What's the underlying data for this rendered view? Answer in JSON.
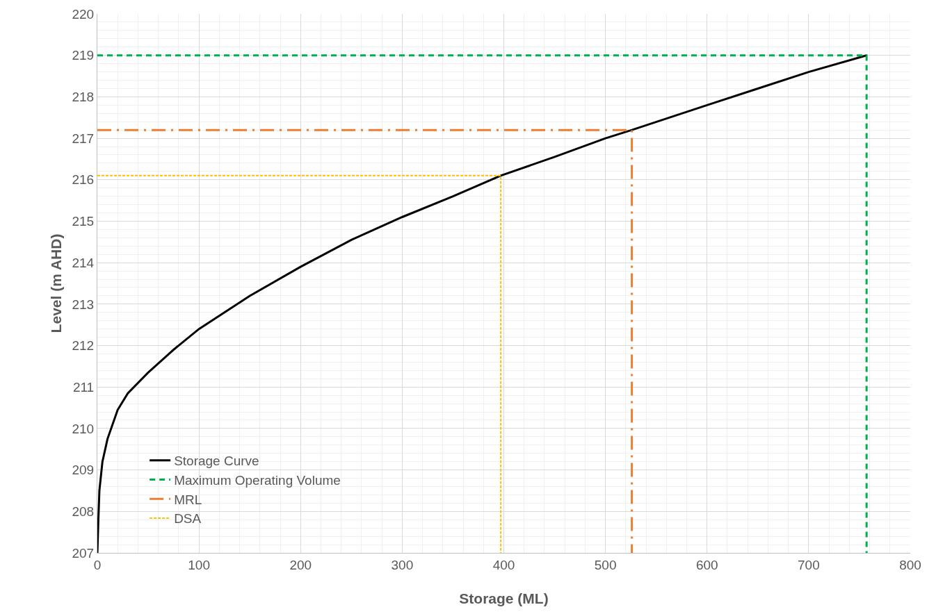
{
  "chart_data": {
    "type": "line",
    "xlabel": "Storage (ML)",
    "ylabel": "Level (m AHD)",
    "xlim": [
      0,
      800
    ],
    "xticks": [
      0,
      100,
      200,
      300,
      400,
      500,
      600,
      700,
      800
    ],
    "ylim": [
      207,
      220
    ],
    "yticks": [
      207,
      208,
      209,
      210,
      211,
      212,
      213,
      214,
      215,
      216,
      217,
      218,
      219,
      220
    ],
    "grid": true,
    "legend": "bottom left",
    "marker": "none",
    "series": [
      {
        "name": "Storage Curve",
        "color": "#000000",
        "line_style": "solid",
        "x": [
          0,
          1,
          2,
          5,
          10,
          20,
          30,
          50,
          75,
          100,
          150,
          200,
          250,
          300,
          350,
          397,
          450,
          500,
          526,
          600,
          650,
          700,
          757
        ],
        "values": [
          207,
          207.8,
          208.5,
          209.2,
          209.75,
          210.45,
          210.85,
          211.35,
          211.9,
          212.4,
          213.2,
          213.9,
          214.55,
          215.1,
          215.6,
          216.1,
          216.55,
          217,
          217.2,
          217.8,
          218.2,
          218.6,
          219
        ]
      },
      {
        "name": "Maximum Operating Volume",
        "color": "#00b050",
        "line_style": "dashed",
        "x": [
          0,
          757,
          757
        ],
        "values": [
          219,
          219,
          207
        ]
      },
      {
        "name": "MRL",
        "color": "#ed7d31",
        "line_style": "dashdot",
        "x": [
          0,
          526,
          526
        ],
        "values": [
          217.2,
          217.2,
          207
        ]
      },
      {
        "name": "DSA",
        "color": "#ffc000",
        "line_style": "dotted",
        "x": [
          0,
          397,
          397
        ],
        "values": [
          216.1,
          216.1,
          207
        ]
      }
    ]
  }
}
